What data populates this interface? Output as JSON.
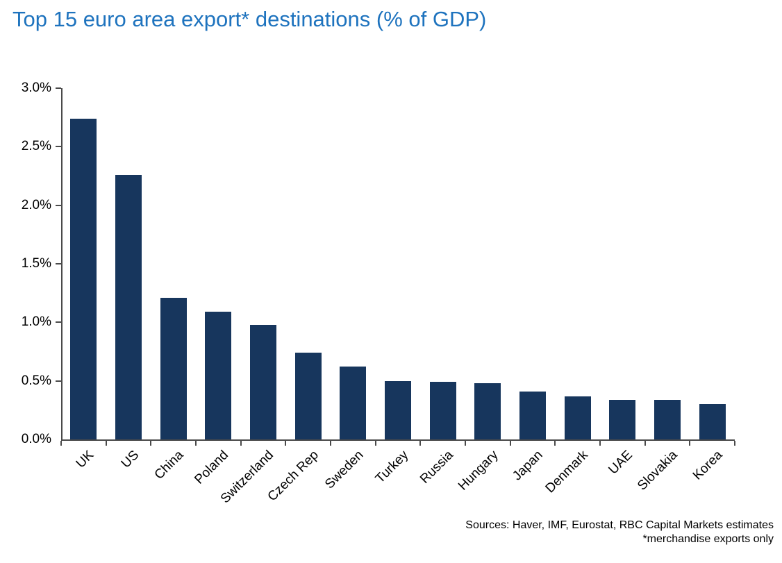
{
  "title": "Top 15 euro area export* destinations (% of GDP)",
  "chart_data": {
    "type": "bar",
    "title": "Top 15 euro area export* destinations (% of GDP)",
    "categories": [
      "UK",
      "US",
      "China",
      "Poland",
      "Switzerland",
      "Czech Rep",
      "Sweden",
      "Turkey",
      "Russia",
      "Hungary",
      "Japan",
      "Denmark",
      "UAE",
      "Slovakia",
      "Korea"
    ],
    "values": [
      2.74,
      2.26,
      1.21,
      1.09,
      0.98,
      0.74,
      0.62,
      0.5,
      0.49,
      0.48,
      0.41,
      0.37,
      0.34,
      0.34,
      0.3
    ],
    "xlabel": "",
    "ylabel": "",
    "ylim": [
      0.0,
      3.0
    ],
    "ytick_step": 0.5,
    "ytick_format": "percent_one_decimal",
    "grid": false,
    "legend": "none",
    "bar_color": "#17365D"
  },
  "footer": {
    "sources_line": "Sources: Haver, IMF, Eurostat, RBC Capital Markets estimates",
    "note_line": "*merchandise exports only"
  },
  "colors": {
    "title": "#1E73BE",
    "bar": "#17365D",
    "axis": "#4a4a4a",
    "text": "#000000"
  }
}
